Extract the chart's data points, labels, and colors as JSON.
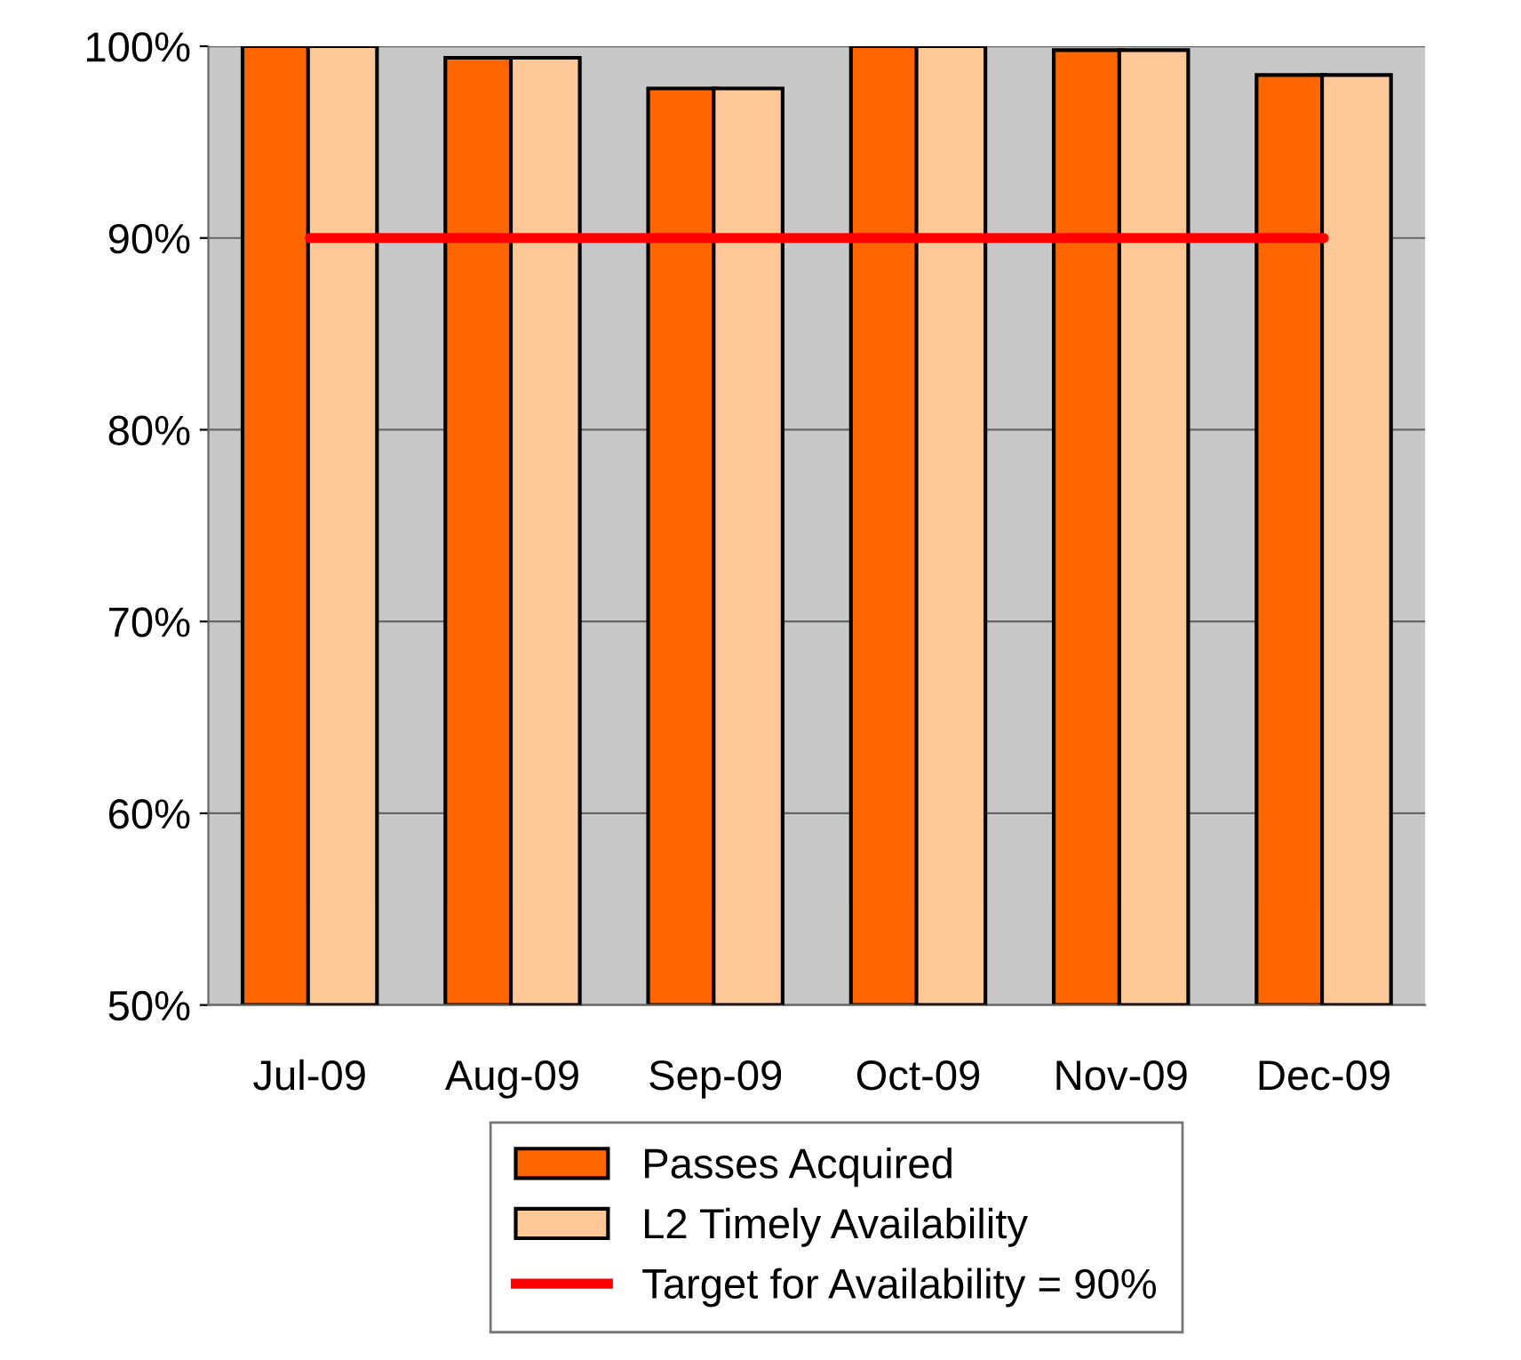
{
  "chart_data": {
    "type": "bar",
    "categories": [
      "Jul-09",
      "Aug-09",
      "Sep-09",
      "Oct-09",
      "Nov-09",
      "Dec-09"
    ],
    "series": [
      {
        "name": "Passes Acquired",
        "color": "#ff6600",
        "values": [
          100,
          99.4,
          97.8,
          100,
          99.8,
          98.5
        ]
      },
      {
        "name": "L2 Timely Availability",
        "color": "#ffc896",
        "values": [
          100,
          99.4,
          97.8,
          100,
          99.8,
          98.5
        ]
      },
      {
        "name": "Target for Availability = 90%",
        "type": "line",
        "color": "#ff0000",
        "values": [
          90,
          90,
          90,
          90,
          90,
          90
        ]
      }
    ],
    "ylim": [
      50,
      100
    ],
    "yticks": [
      {
        "value": 50,
        "label": "50%"
      },
      {
        "value": 60,
        "label": "60%"
      },
      {
        "value": 70,
        "label": "70%"
      },
      {
        "value": 80,
        "label": "80%"
      },
      {
        "value": 90,
        "label": "90%"
      },
      {
        "value": 100,
        "label": "100%"
      }
    ],
    "grid": "y",
    "legend": "bottom"
  }
}
